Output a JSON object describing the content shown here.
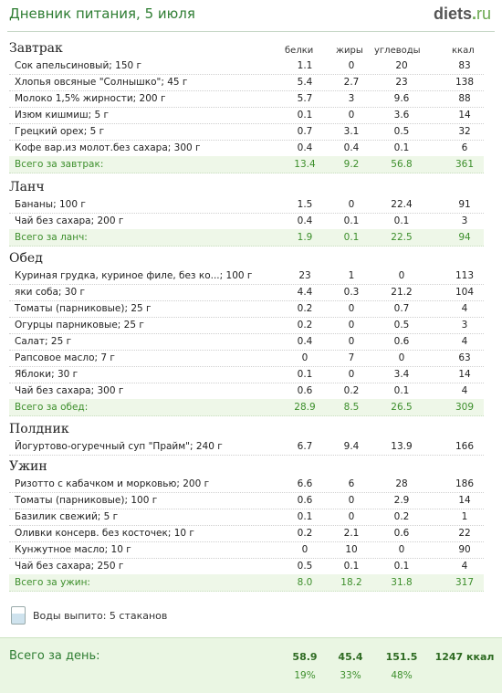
{
  "header": {
    "title": "Дневник питания, 5 июля",
    "logo_main": "diets",
    "logo_dot": ".",
    "logo_tld": "ru"
  },
  "columns": {
    "c1": "белки",
    "c2": "жиры",
    "c3": "углеводы",
    "c4": "ккал"
  },
  "meals": [
    {
      "title": "Завтрак",
      "rows": [
        [
          "Сок апельсиновый; 150 г",
          "1.1",
          "0",
          "20",
          "83"
        ],
        [
          "Хлопья овсяные \"Солнышко\"; 45 г",
          "5.4",
          "2.7",
          "23",
          "138"
        ],
        [
          "Молоко 1,5% жирности; 200 г",
          "5.7",
          "3",
          "9.6",
          "88"
        ],
        [
          "Изюм кишмиш; 5 г",
          "0.1",
          "0",
          "3.6",
          "14"
        ],
        [
          "Грецкий орех; 5 г",
          "0.7",
          "3.1",
          "0.5",
          "32"
        ],
        [
          "Кофе вар.из молот.без сахара; 300 г",
          "0.4",
          "0.4",
          "0.1",
          "6"
        ]
      ],
      "total": [
        "Всего за завтрак:",
        "13.4",
        "9.2",
        "56.8",
        "361"
      ]
    },
    {
      "title": "Ланч",
      "rows": [
        [
          "Бананы; 100 г",
          "1.5",
          "0",
          "22.4",
          "91"
        ],
        [
          "Чай без сахара; 200 г",
          "0.4",
          "0.1",
          "0.1",
          "3"
        ]
      ],
      "total": [
        "Всего за ланч:",
        "1.9",
        "0.1",
        "22.5",
        "94"
      ]
    },
    {
      "title": "Обед",
      "rows": [
        [
          "Куриная грудка, куриное филе, без ко...; 100 г",
          "23",
          "1",
          "0",
          "113"
        ],
        [
          "яки соба; 30 г",
          "4.4",
          "0.3",
          "21.2",
          "104"
        ],
        [
          "Томаты (парниковые); 25 г",
          "0.2",
          "0",
          "0.7",
          "4"
        ],
        [
          "Огурцы парниковые; 25 г",
          "0.2",
          "0",
          "0.5",
          "3"
        ],
        [
          "Салат; 25 г",
          "0.4",
          "0",
          "0.6",
          "4"
        ],
        [
          "Рапсовое масло; 7 г",
          "0",
          "7",
          "0",
          "63"
        ],
        [
          "Яблоки; 30 г",
          "0.1",
          "0",
          "3.4",
          "14"
        ],
        [
          "Чай без сахара; 300 г",
          "0.6",
          "0.2",
          "0.1",
          "4"
        ]
      ],
      "total": [
        "Всего за обед:",
        "28.9",
        "8.5",
        "26.5",
        "309"
      ]
    },
    {
      "title": "Полдник",
      "rows": [
        [
          "Йогуртово-огуречный суп \"Прайм\"; 240 г",
          "6.7",
          "9.4",
          "13.9",
          "166"
        ]
      ],
      "total": null
    },
    {
      "title": "Ужин",
      "rows": [
        [
          "Ризотто с кабачком и морковью; 200 г",
          "6.6",
          "6",
          "28",
          "186"
        ],
        [
          "Томаты (парниковые); 100 г",
          "0.6",
          "0",
          "2.9",
          "14"
        ],
        [
          "Базилик свежий; 5 г",
          "0.1",
          "0",
          "0.2",
          "1"
        ],
        [
          "Оливки консерв. без косточек; 10 г",
          "0.2",
          "2.1",
          "0.6",
          "22"
        ],
        [
          "Кунжутное масло; 10 г",
          "0",
          "10",
          "0",
          "90"
        ],
        [
          "Чай без сахара; 250 г",
          "0.5",
          "0.1",
          "0.1",
          "4"
        ]
      ],
      "total": [
        "Всего за ужин:",
        "8.0",
        "18.2",
        "31.8",
        "317"
      ]
    }
  ],
  "water": {
    "text": "Воды выпито: 5 стаканов",
    "icon": "glass-icon"
  },
  "day_total": {
    "label": "Всего за день:",
    "protein": "58.9",
    "fat": "45.4",
    "carbs": "151.5",
    "kcal": "1247 ккал",
    "protein_pct": "19%",
    "fat_pct": "33%",
    "carbs_pct": "48%"
  }
}
